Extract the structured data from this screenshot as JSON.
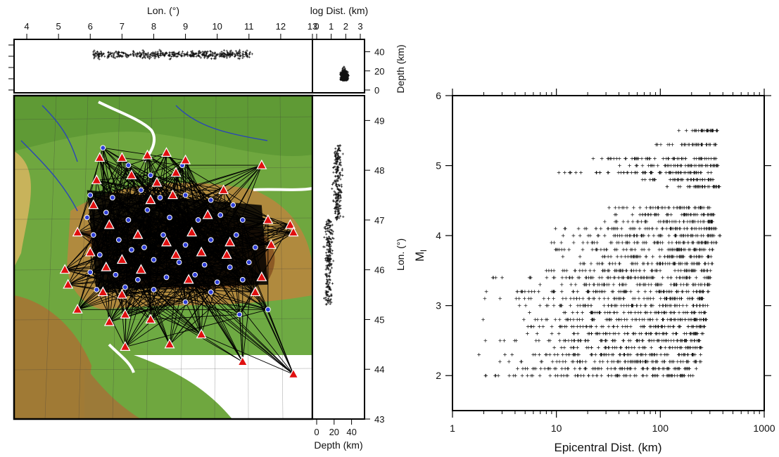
{
  "chart_data": [
    {
      "type": "scatter",
      "panel": "map-with-depth-sections",
      "x_axis": {
        "label": "Lon. (°)",
        "range": [
          3.6,
          13.0
        ],
        "ticks": [
          "4",
          "5",
          "6",
          "7",
          "8",
          "9",
          "10",
          "11",
          "12",
          "13"
        ]
      },
      "y_axis": {
        "label": "Lon. (°)",
        "range": [
          43.0,
          49.5
        ],
        "ticks": [
          "43",
          "44",
          "45",
          "46",
          "47",
          "48",
          "49"
        ]
      },
      "depth_axis": {
        "label": "Depth (km)",
        "range": [
          0,
          50
        ],
        "ticks": [
          "0",
          "20",
          "40"
        ]
      },
      "log_dist_axis": {
        "label": "log Dist. (km)",
        "range": [
          0,
          3
        ],
        "ticks": [
          "0",
          "1",
          "2",
          "3"
        ]
      },
      "depth_axis_bottom": {
        "label": "Depth (km)",
        "ticks": [
          "0",
          "20",
          "40"
        ]
      },
      "series": [
        {
          "name": "",
          "marker": "triangle",
          "color": "#e01010",
          "points": [
            [
              6.3,
              48.25
            ],
            [
              7.0,
              48.25
            ],
            [
              7.8,
              48.3
            ],
            [
              8.4,
              48.35
            ],
            [
              9.0,
              48.2
            ],
            [
              11.4,
              48.1
            ],
            [
              6.2,
              47.8
            ],
            [
              7.3,
              47.9
            ],
            [
              8.1,
              47.75
            ],
            [
              8.7,
              47.95
            ],
            [
              10.2,
              47.6
            ],
            [
              6.1,
              47.3
            ],
            [
              7.9,
              47.4
            ],
            [
              8.6,
              47.5
            ],
            [
              9.7,
              47.1
            ],
            [
              11.6,
              47.0
            ],
            [
              5.6,
              46.75
            ],
            [
              6.6,
              46.9
            ],
            [
              7.5,
              46.7
            ],
            [
              8.4,
              46.55
            ],
            [
              9.2,
              46.75
            ],
            [
              10.4,
              46.55
            ],
            [
              12.3,
              46.9
            ],
            [
              6.0,
              46.35
            ],
            [
              7.0,
              46.2
            ],
            [
              8.7,
              46.3
            ],
            [
              9.5,
              46.35
            ],
            [
              10.3,
              46.3
            ],
            [
              11.7,
              46.5
            ],
            [
              12.4,
              46.75
            ],
            [
              5.2,
              46.0
            ],
            [
              6.5,
              46.05
            ],
            [
              7.6,
              46.0
            ],
            [
              9.1,
              45.8
            ],
            [
              11.4,
              45.85
            ],
            [
              5.3,
              45.7
            ],
            [
              6.4,
              45.55
            ],
            [
              7.0,
              45.5
            ],
            [
              11.2,
              45.55
            ],
            [
              5.6,
              45.2
            ],
            [
              6.6,
              44.95
            ],
            [
              7.1,
              45.1
            ],
            [
              7.9,
              45.0
            ],
            [
              7.1,
              44.45
            ],
            [
              8.5,
              44.5
            ],
            [
              9.5,
              44.7
            ],
            [
              10.8,
              44.15
            ],
            [
              12.4,
              43.9
            ]
          ]
        },
        {
          "name": "",
          "marker": "circle",
          "color": "#2e3fd8",
          "points": [
            [
              6.4,
              48.45
            ],
            [
              7.2,
              48.1
            ],
            [
              7.9,
              47.9
            ],
            [
              8.9,
              48.1
            ],
            [
              6.0,
              47.5
            ],
            [
              6.7,
              47.45
            ],
            [
              7.6,
              47.6
            ],
            [
              8.2,
              47.45
            ],
            [
              9.0,
              47.5
            ],
            [
              9.8,
              47.4
            ],
            [
              10.5,
              47.3
            ],
            [
              5.9,
              47.05
            ],
            [
              6.5,
              47.15
            ],
            [
              7.2,
              47.0
            ],
            [
              7.8,
              47.2
            ],
            [
              8.5,
              47.05
            ],
            [
              9.4,
              47.0
            ],
            [
              10.1,
              47.1
            ],
            [
              10.8,
              47.0
            ],
            [
              6.1,
              46.7
            ],
            [
              6.9,
              46.6
            ],
            [
              7.7,
              46.45
            ],
            [
              8.3,
              46.7
            ],
            [
              9.0,
              46.5
            ],
            [
              9.8,
              46.6
            ],
            [
              10.6,
              46.7
            ],
            [
              11.2,
              46.45
            ],
            [
              6.3,
              46.3
            ],
            [
              7.3,
              46.4
            ],
            [
              8.0,
              46.2
            ],
            [
              8.8,
              46.15
            ],
            [
              9.6,
              46.1
            ],
            [
              10.4,
              46.05
            ],
            [
              11.0,
              46.15
            ],
            [
              6.0,
              45.95
            ],
            [
              6.8,
              45.9
            ],
            [
              7.5,
              45.8
            ],
            [
              8.4,
              45.85
            ],
            [
              9.3,
              45.9
            ],
            [
              10.0,
              45.75
            ],
            [
              10.8,
              45.8
            ],
            [
              6.2,
              45.6
            ],
            [
              7.1,
              45.65
            ],
            [
              8.0,
              45.6
            ],
            [
              9.8,
              45.55
            ],
            [
              11.6,
              45.2
            ],
            [
              10.7,
              45.1
            ],
            [
              9.0,
              45.35
            ]
          ]
        },
        {
          "name": "",
          "marker": "cross",
          "color": "#111111",
          "distribution": "hypocenter longitude vs depth (top strip), depth vs latitude (right strip), depth vs log distance (corner)"
        }
      ]
    },
    {
      "type": "scatter",
      "panel": "magnitude-vs-distance",
      "x_axis": {
        "label": "Epicentral Dist. (km)",
        "scale": "log",
        "range": [
          1,
          1000
        ],
        "ticks": [
          "1",
          "10",
          "100",
          "1000"
        ]
      },
      "y_axis": {
        "label": "M",
        "label_sub": "l",
        "range": [
          1.5,
          6
        ],
        "ticks": [
          "2",
          "3",
          "4",
          "5",
          "6"
        ]
      },
      "marker": "cross",
      "color": "#111111",
      "magnitude_bins": [
        {
          "m": 2.0,
          "dist_range": [
            1.7,
            210
          ]
        },
        {
          "m": 2.1,
          "dist_range": [
            2.2,
            230
          ]
        },
        {
          "m": 2.2,
          "dist_range": [
            1.8,
            250
          ]
        },
        {
          "m": 2.3,
          "dist_range": [
            1.7,
            250
          ]
        },
        {
          "m": 2.4,
          "dist_range": [
            6,
            250
          ]
        },
        {
          "m": 2.5,
          "dist_range": [
            1.8,
            260
          ]
        },
        {
          "m": 2.6,
          "dist_range": [
            4,
            260
          ]
        },
        {
          "m": 2.7,
          "dist_range": [
            3,
            270
          ]
        },
        {
          "m": 2.8,
          "dist_range": [
            1.7,
            280
          ]
        },
        {
          "m": 2.9,
          "dist_range": [
            5,
            280
          ]
        },
        {
          "m": 3.0,
          "dist_range": [
            3,
            290
          ]
        },
        {
          "m": 3.1,
          "dist_range": [
            1.8,
            290
          ]
        },
        {
          "m": 3.2,
          "dist_range": [
            1.8,
            300
          ]
        },
        {
          "m": 3.3,
          "dist_range": [
            4.5,
            300
          ]
        },
        {
          "m": 3.4,
          "dist_range": [
            1.8,
            310
          ]
        },
        {
          "m": 3.5,
          "dist_range": [
            4.5,
            310
          ]
        },
        {
          "m": 3.6,
          "dist_range": [
            8,
            320
          ]
        },
        {
          "m": 3.7,
          "dist_range": [
            9,
            320
          ]
        },
        {
          "m": 3.8,
          "dist_range": [
            7,
            340
          ]
        },
        {
          "m": 3.9,
          "dist_range": [
            7,
            350
          ]
        },
        {
          "m": 4.0,
          "dist_range": [
            7,
            380
          ]
        },
        {
          "m": 4.1,
          "dist_range": [
            7,
            350
          ]
        },
        {
          "m": 4.2,
          "dist_range": [
            24,
            340
          ]
        },
        {
          "m": 4.3,
          "dist_range": [
            28,
            330
          ]
        },
        {
          "m": 4.4,
          "dist_range": [
            30,
            320
          ]
        },
        {
          "m": 4.7,
          "dist_range": [
            100,
            380
          ]
        },
        {
          "m": 4.8,
          "dist_range": [
            60,
            330
          ]
        },
        {
          "m": 4.9,
          "dist_range": [
            7,
            330
          ]
        },
        {
          "m": 5.0,
          "dist_range": [
            30,
            380
          ]
        },
        {
          "m": 5.1,
          "dist_range": [
            16,
            350
          ]
        },
        {
          "m": 5.3,
          "dist_range": [
            75,
            350
          ]
        },
        {
          "m": 5.5,
          "dist_range": [
            130,
            360
          ]
        }
      ]
    }
  ]
}
